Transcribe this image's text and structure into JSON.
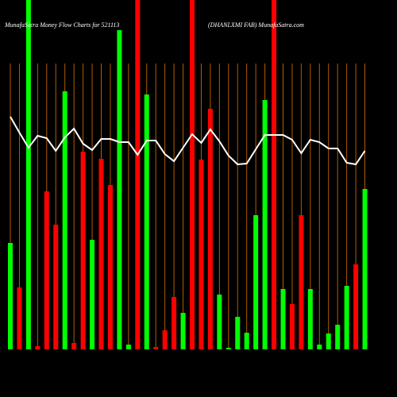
{
  "chart_data": {
    "type": "bar",
    "title": "MunafaSatra  Money Flow  Charts for 521113",
    "subtitle": "(DHANLXMI FAB) MunafaSatra.com",
    "ylim": [
      0,
      440
    ],
    "grid": true,
    "grid_color": "#b35c00",
    "values": [
      134,
      78,
      440,
      4,
      199,
      157,
      325,
      8,
      249,
      138,
      240,
      207,
      402,
      6,
      440,
      321,
      3,
      24,
      66,
      46,
      440,
      239,
      303,
      69,
      2,
      41,
      21,
      169,
      314,
      440,
      76,
      57,
      169,
      76,
      6,
      20,
      31,
      80,
      107,
      202
    ],
    "colors": [
      "#00ff00",
      "#ff0000",
      "#00ff00",
      "#ff0000",
      "#ff0000",
      "#ff0000",
      "#00ff00",
      "#ff0000",
      "#ff0000",
      "#00ff00",
      "#ff0000",
      "#ff0000",
      "#00ff00",
      "#00ff00",
      "#ff0000",
      "#00ff00",
      "#ff0000",
      "#ff0000",
      "#ff0000",
      "#00ff00",
      "#ff0000",
      "#ff0000",
      "#ff0000",
      "#00ff00",
      "#00ff00",
      "#00ff00",
      "#00ff00",
      "#00ff00",
      "#00ff00",
      "#ff0000",
      "#00ff00",
      "#ff0000",
      "#ff0000",
      "#00ff00",
      "#00ff00",
      "#00ff00",
      "#00ff00",
      "#00ff00",
      "#ff0000",
      "#00ff00"
    ],
    "line": {
      "color": "#ffffff",
      "values": [
        293,
        273,
        254,
        269,
        266,
        250,
        267,
        278,
        259,
        251,
        265,
        265,
        261,
        261,
        245,
        263,
        263,
        246,
        237,
        254,
        271,
        260,
        277,
        262,
        244,
        233,
        234,
        252,
        270,
        270,
        270,
        264,
        247,
        264,
        261,
        253,
        253,
        235,
        233,
        250
      ]
    }
  }
}
